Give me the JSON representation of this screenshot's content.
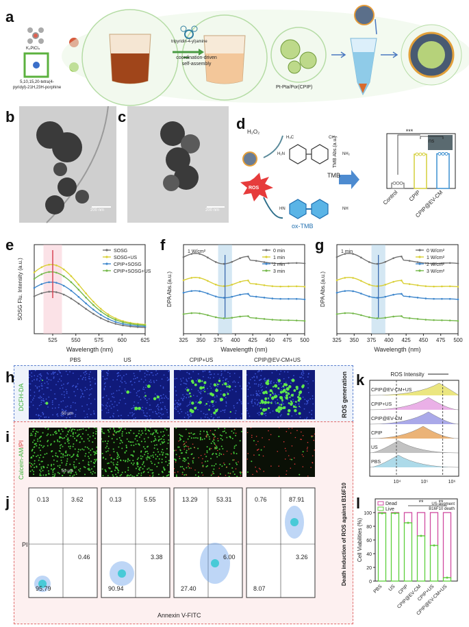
{
  "panel_letters": {
    "a": "a",
    "b": "b",
    "c": "c",
    "d": "d",
    "e": "e",
    "f": "f",
    "g": "g",
    "h": "h",
    "i": "i",
    "j": "j",
    "k": "k",
    "l": "l"
  },
  "panel_a": {
    "reagent1": "K₂PtCl₄",
    "reagent2": "5,10,15,20-tetra(4-pyridyl)-21H,23H-porphine",
    "linker": "tripyridin-4-yl)amine",
    "step": "coordination-driven self-assembly",
    "product": "Pt-Pta/Por(CPIP)"
  },
  "panel_b": {
    "scale": "200 nm"
  },
  "panel_c": {
    "scale": "200 nm"
  },
  "panel_d": {
    "h2o2": "H₂O₂",
    "ros": "ROS",
    "tmb": "TMB",
    "oxtmb": "ox-TMB",
    "ch3": "CH₃",
    "h3c": "H₃C",
    "h2n": "H₂N",
    "nh2": "NH₂",
    "hn": "HN",
    "nh": "NH"
  },
  "bar_tmb": {
    "ylabel": "TMB Abs.(a.u.)",
    "sig1": "***",
    "sig2": "ns",
    "categories": [
      "Control",
      "CPIP",
      "CPIP@EV-CM"
    ],
    "colors": [
      "#888888",
      "#d4cf3a",
      "#3a8fd0"
    ],
    "chart_data": {
      "type": "bar",
      "categories": [
        "Control",
        "CPIP",
        "CPIP@EV-CM"
      ],
      "values": [
        0.12,
        0.78,
        0.79
      ]
    }
  },
  "panel_e": {
    "ylabel": "SOSG Flu. Intensity (a.u.)",
    "xlabel": "Wavelength (nm)",
    "xticks": [
      "525",
      "550",
      "575",
      "600",
      "625"
    ],
    "legend": [
      "SOSG",
      "SOSG+US",
      "CPIP+SOSG",
      "CPIP+SOSG+US"
    ],
    "colors": [
      "#707070",
      "#d9cf35",
      "#3d86cc",
      "#74b84a"
    ],
    "chart_data": {
      "type": "line",
      "x": [
        510,
        525,
        540,
        560,
        580,
        600,
        625
      ],
      "series": [
        {
          "name": "SOSG",
          "values": [
            0.45,
            0.55,
            0.46,
            0.3,
            0.2,
            0.12,
            0.06
          ]
        },
        {
          "name": "SOSG+US",
          "values": [
            0.75,
            0.92,
            0.78,
            0.52,
            0.35,
            0.22,
            0.12
          ]
        },
        {
          "name": "CPIP+SOSG",
          "values": [
            0.55,
            0.68,
            0.58,
            0.4,
            0.27,
            0.17,
            0.09
          ]
        },
        {
          "name": "CPIP+SOSG+US",
          "values": [
            0.68,
            0.82,
            0.7,
            0.47,
            0.32,
            0.2,
            0.11
          ]
        }
      ]
    }
  },
  "panel_f": {
    "title": "1 W/cm²",
    "ylabel": "DPA Abs.(a.u.)",
    "xlabel": "Wavelength (nm)",
    "xticks": [
      "325",
      "350",
      "375",
      "400",
      "425",
      "450",
      "475",
      "500"
    ],
    "legend": [
      "0 min",
      "1 min",
      "2 min",
      "3 min"
    ],
    "colors": [
      "#707070",
      "#d9cf35",
      "#3d86cc",
      "#74b84a"
    ]
  },
  "panel_g": {
    "title": "1 min",
    "ylabel": "DPA Abs.(a.u.)",
    "xlabel": "Wavelength (nm)",
    "xticks": [
      "325",
      "350",
      "375",
      "400",
      "425",
      "450",
      "475",
      "500"
    ],
    "legend": [
      "0 W/cm²",
      "1 W/cm²",
      "2 W/cm²",
      "3 W/cm²"
    ],
    "colors": [
      "#707070",
      "#d9cf35",
      "#3d86cc",
      "#74b84a"
    ]
  },
  "panel_h": {
    "cols": [
      "PBS",
      "US",
      "CPIP+US",
      "CPIP@EV-CM+US"
    ],
    "stain": "DCFH-DA",
    "side": "ROS generation",
    "scale": "50 μm"
  },
  "panel_i": {
    "stain1": "Calcein-AM",
    "stain2": "/PI",
    "scale": "50 μm",
    "side": "Death induction of ROS against B16F10"
  },
  "panel_j": {
    "ylabel": "PI",
    "xlabel": "Annexin V-FITC",
    "quadrants": [
      {
        "ul": "0.13",
        "ur": "3.62",
        "ll": "95.79",
        "lr": "0.46"
      },
      {
        "ul": "0.13",
        "ur": "5.55",
        "ll": "90.94",
        "lr": "3.38"
      },
      {
        "ul": "13.29",
        "ur": "53.31",
        "ll": "27.40",
        "lr": "6.00"
      },
      {
        "ul": "0.76",
        "ur": "87.91",
        "ll": "8.07",
        "lr": "3.26"
      }
    ]
  },
  "panel_k": {
    "title": "ROS Intensity",
    "labels": [
      "CPIP@EV-CM+US",
      "CPIP+US",
      "CPIP@EV-CM",
      "CPIP",
      "US",
      "PBS"
    ],
    "colors": [
      "#e8e26a",
      "#e7a3e3",
      "#9c9be6",
      "#e8a660",
      "#b8b8b8",
      "#9fd4e6"
    ],
    "xticks": [
      "10⁴",
      "10⁵",
      "10⁶"
    ]
  },
  "panel_l": {
    "ylabel": "Cell Viabilities (%)",
    "legend": [
      "Dead",
      "Live"
    ],
    "note": "US-augment B16F10 death",
    "sig": "**",
    "yticks": [
      "0",
      "20",
      "40",
      "60",
      "80",
      "100"
    ],
    "categories": [
      "PBS",
      "US",
      "CPIP",
      "CPIP@EV-CM",
      "CPIP+US",
      "CPIP@EV-CM+US"
    ],
    "chart_data": {
      "type": "bar",
      "categories": [
        "PBS",
        "US",
        "CPIP",
        "CPIP@EV-CM",
        "CPIP+US",
        "CPIP@EV-CM+US"
      ],
      "series": [
        {
          "name": "Live",
          "values": [
            99,
            99,
            85,
            66,
            52,
            5
          ]
        },
        {
          "name": "Dead",
          "values": [
            1,
            1,
            15,
            34,
            48,
            95
          ]
        }
      ],
      "ylim": [
        0,
        120
      ]
    }
  }
}
